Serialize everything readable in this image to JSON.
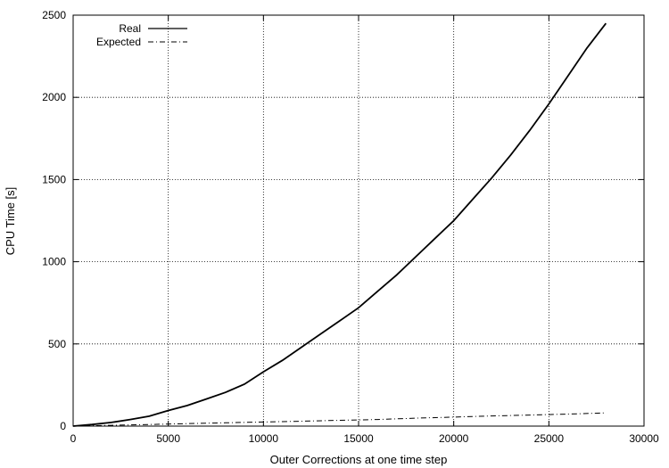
{
  "chart_data": {
    "type": "line",
    "title": "",
    "xlabel": "Outer Corrections at one time step",
    "ylabel": "CPU Time [s]",
    "xlim": [
      0,
      30000
    ],
    "ylim": [
      0,
      2500
    ],
    "x_ticks": [
      0,
      5000,
      10000,
      15000,
      20000,
      25000,
      30000
    ],
    "y_ticks": [
      0,
      500,
      1000,
      1500,
      2000,
      2500
    ],
    "x_tick_labels": [
      "0",
      "5000",
      "10000",
      "15000",
      "20000",
      "25000",
      "30000"
    ],
    "y_tick_labels": [
      "0",
      "500",
      "1000",
      "1500",
      "2000",
      "2500"
    ],
    "grid": true,
    "legend_position": "top-left",
    "series": [
      {
        "name": "Real",
        "style": "solid",
        "color": "#000000",
        "x": [
          0,
          1000,
          2000,
          3000,
          4000,
          5000,
          6000,
          7000,
          8000,
          9000,
          10000,
          11000,
          12000,
          13000,
          14000,
          15000,
          16000,
          17000,
          18000,
          19000,
          20000,
          21000,
          22000,
          23000,
          24000,
          25000,
          26000,
          27000,
          28000
        ],
        "values": [
          0,
          10,
          22,
          40,
          60,
          95,
          125,
          165,
          205,
          255,
          330,
          400,
          480,
          560,
          640,
          720,
          820,
          920,
          1030,
          1140,
          1250,
          1380,
          1510,
          1650,
          1800,
          1960,
          2130,
          2300,
          2450
        ]
      },
      {
        "name": "Expected",
        "style": "dash-dot",
        "color": "#000000",
        "x": [
          0,
          2000,
          4000,
          6000,
          8000,
          10000,
          12000,
          14000,
          16000,
          18000,
          20000,
          22000,
          24000,
          26000,
          28000
        ],
        "values": [
          0,
          5,
          10,
          15,
          20,
          25,
          30,
          35,
          40,
          48,
          55,
          62,
          67,
          73,
          80
        ]
      }
    ]
  }
}
